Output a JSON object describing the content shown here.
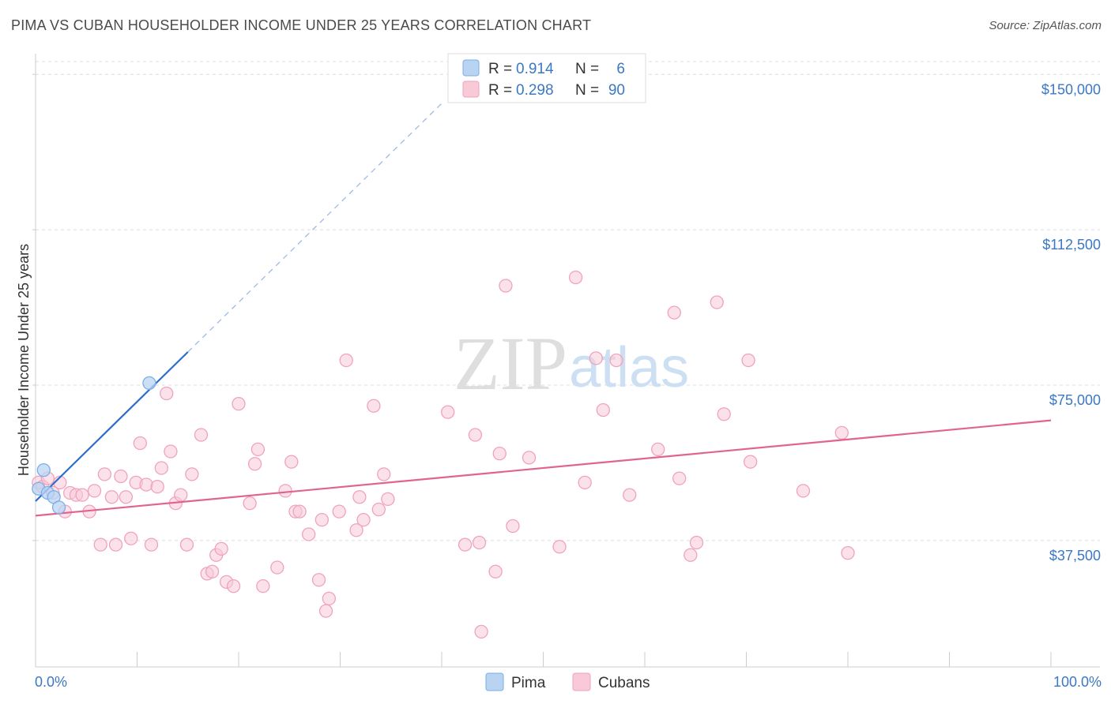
{
  "chart_data": {
    "type": "scatter",
    "title": "PIMA VS CUBAN HOUSEHOLDER INCOME UNDER 25 YEARS CORRELATION CHART",
    "source": "Source: ZipAtlas.com",
    "ylabel": "Householder Income Under 25 years",
    "xlim": [
      0,
      100
    ],
    "ylim": [
      7000,
      155000
    ],
    "x_edge_labels": [
      "0.0%",
      "100.0%"
    ],
    "yticks": [
      {
        "value": 37500,
        "label": "$37,500"
      },
      {
        "value": 75000,
        "label": "$75,000"
      },
      {
        "value": 112500,
        "label": "$112,500"
      },
      {
        "value": 150000,
        "label": "$150,000"
      }
    ],
    "watermark": {
      "zip": "ZIP",
      "atlas": "atlas"
    },
    "legend": {
      "r_label": "R =",
      "n_label": "N =",
      "entries": [
        {
          "r": "0.914",
          "n": "6"
        },
        {
          "r": "0.298",
          "n": "90"
        }
      ]
    },
    "series": [
      {
        "name": "Pima",
        "color": "#7aaee8",
        "fill": "#b9d4f3",
        "line_color": "#2a6dcc",
        "trend": {
          "x0": 0,
          "y0": 47000,
          "x1": 15,
          "y1": 83000,
          "dash_to_x": 40,
          "dash_to_y": 143000
        },
        "points": [
          [
            0.3,
            50000
          ],
          [
            0.8,
            54500
          ],
          [
            1.2,
            49000
          ],
          [
            1.8,
            48000
          ],
          [
            2.3,
            45500
          ],
          [
            11.2,
            75500
          ]
        ]
      },
      {
        "name": "Cubans",
        "color": "#f0a2bb",
        "fill": "#f8cad8",
        "line_color": "#e0648e",
        "trend": {
          "x0": 0,
          "y0": 43500,
          "x1": 100,
          "y1": 66500
        },
        "points": [
          [
            0.3,
            51500
          ],
          [
            0.7,
            50500
          ],
          [
            1.2,
            52500
          ],
          [
            1.7,
            49000
          ],
          [
            2.4,
            51500
          ],
          [
            2.9,
            44500
          ],
          [
            3.4,
            49000
          ],
          [
            4.0,
            48500
          ],
          [
            4.6,
            48500
          ],
          [
            5.3,
            44500
          ],
          [
            5.8,
            49500
          ],
          [
            6.4,
            36500
          ],
          [
            6.8,
            53500
          ],
          [
            7.5,
            48000
          ],
          [
            7.9,
            36500
          ],
          [
            8.4,
            53000
          ],
          [
            8.9,
            48000
          ],
          [
            9.4,
            38000
          ],
          [
            9.9,
            51500
          ],
          [
            10.3,
            61000
          ],
          [
            10.9,
            51000
          ],
          [
            11.4,
            36500
          ],
          [
            12.0,
            50500
          ],
          [
            12.4,
            55000
          ],
          [
            12.9,
            73000
          ],
          [
            13.3,
            59000
          ],
          [
            13.8,
            46500
          ],
          [
            14.3,
            48500
          ],
          [
            14.9,
            36500
          ],
          [
            15.4,
            53500
          ],
          [
            16.3,
            63000
          ],
          [
            16.9,
            29500
          ],
          [
            17.4,
            30000
          ],
          [
            17.8,
            34000
          ],
          [
            18.3,
            35500
          ],
          [
            18.8,
            27500
          ],
          [
            19.5,
            26500
          ],
          [
            20.0,
            70500
          ],
          [
            21.1,
            46500
          ],
          [
            21.6,
            56000
          ],
          [
            21.9,
            59500
          ],
          [
            22.4,
            26500
          ],
          [
            23.8,
            31000
          ],
          [
            24.6,
            49500
          ],
          [
            25.2,
            56500
          ],
          [
            25.6,
            44500
          ],
          [
            26.0,
            44500
          ],
          [
            26.9,
            39000
          ],
          [
            27.9,
            28000
          ],
          [
            28.2,
            42500
          ],
          [
            28.6,
            20500
          ],
          [
            28.9,
            23500
          ],
          [
            29.9,
            44500
          ],
          [
            30.6,
            81000
          ],
          [
            31.6,
            40000
          ],
          [
            31.9,
            48000
          ],
          [
            32.3,
            42500
          ],
          [
            33.3,
            70000
          ],
          [
            33.8,
            45000
          ],
          [
            34.3,
            53500
          ],
          [
            34.7,
            47500
          ],
          [
            40.6,
            68500
          ],
          [
            42.3,
            36500
          ],
          [
            43.3,
            63000
          ],
          [
            43.7,
            37000
          ],
          [
            43.9,
            15500
          ],
          [
            45.3,
            30000
          ],
          [
            45.7,
            58500
          ],
          [
            46.3,
            99000
          ],
          [
            48.6,
            57500
          ],
          [
            51.6,
            36000
          ],
          [
            53.2,
            101000
          ],
          [
            54.1,
            51500
          ],
          [
            55.2,
            81500
          ],
          [
            55.9,
            69000
          ],
          [
            57.2,
            81000
          ],
          [
            58.5,
            48500
          ],
          [
            61.3,
            59500
          ],
          [
            62.9,
            92500
          ],
          [
            63.4,
            52500
          ],
          [
            64.5,
            34000
          ],
          [
            65.1,
            37000
          ],
          [
            67.1,
            95000
          ],
          [
            67.8,
            68000
          ],
          [
            70.2,
            81000
          ],
          [
            70.4,
            56500
          ],
          [
            75.6,
            49500
          ],
          [
            79.4,
            63500
          ],
          [
            80.0,
            34500
          ],
          [
            47.0,
            41000
          ]
        ]
      }
    ]
  }
}
